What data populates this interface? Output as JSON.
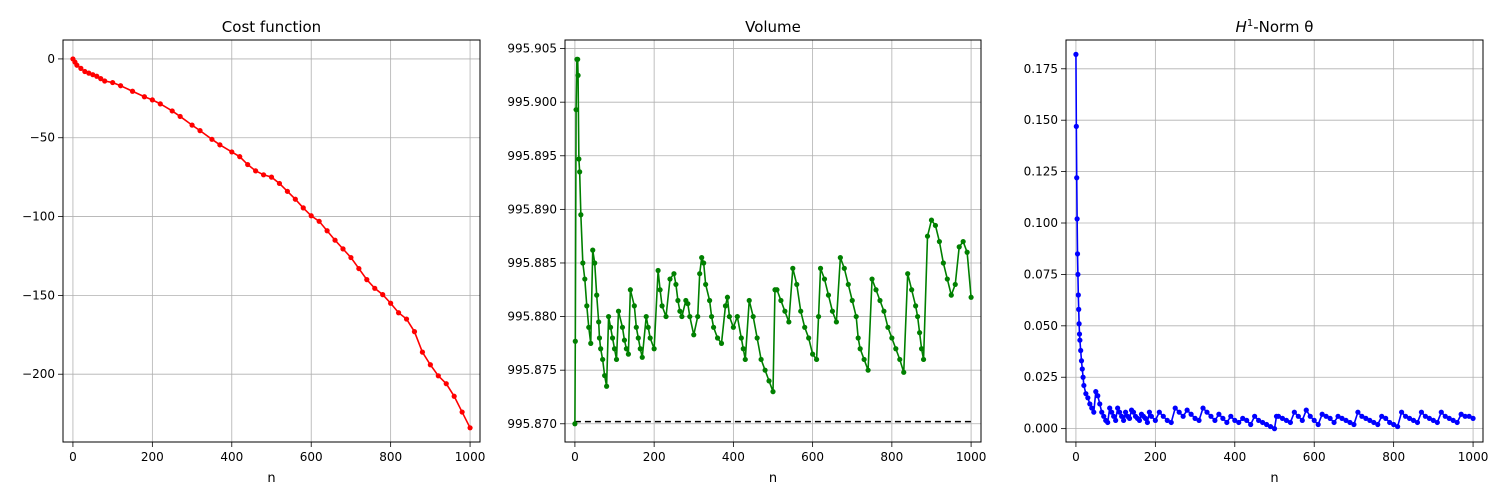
{
  "chart_data": [
    {
      "type": "line",
      "title": "Cost function",
      "xlabel": "n",
      "ylabel": "",
      "xlim": [
        -25,
        1025
      ],
      "ylim": [
        -243,
        12
      ],
      "xticks": [
        0,
        200,
        400,
        600,
        800,
        1000
      ],
      "xtick_labels": [
        "0",
        "200",
        "400",
        "600",
        "800",
        "1000"
      ],
      "yticks": [
        0,
        -50,
        -100,
        -150,
        -200
      ],
      "ytick_labels": [
        "0",
        "−50",
        "−100",
        "−150",
        "−200"
      ],
      "grid": true,
      "series": [
        {
          "color": "#ff0000",
          "marker": "dot",
          "x": [
            0,
            5,
            10,
            20,
            30,
            40,
            50,
            60,
            70,
            80,
            100,
            120,
            150,
            180,
            200,
            220,
            250,
            270,
            300,
            320,
            350,
            370,
            400,
            420,
            440,
            460,
            480,
            500,
            520,
            540,
            560,
            580,
            600,
            620,
            640,
            660,
            680,
            700,
            720,
            740,
            760,
            780,
            800,
            820,
            840,
            860,
            880,
            900,
            920,
            940,
            960,
            980,
            1000
          ],
          "y": [
            0,
            -2,
            -4,
            -6,
            -8,
            -9,
            -10,
            -11,
            -12.5,
            -14,
            -15,
            -17,
            -20.5,
            -24,
            -26,
            -28.5,
            -33,
            -36.5,
            -42,
            -45.5,
            -51,
            -54.5,
            -59,
            -62,
            -67,
            -71,
            -73.5,
            -75,
            -79,
            -84,
            -89,
            -94.5,
            -99.5,
            -103,
            -109,
            -115,
            -120.5,
            -126,
            -133,
            -140,
            -145.5,
            -149.5,
            -155,
            -161,
            -165,
            -173,
            -186,
            -194,
            -201,
            -206,
            -214,
            -224,
            -234
          ]
        }
      ]
    },
    {
      "type": "line",
      "title": "Volume",
      "xlabel": "n",
      "ylabel": "",
      "xlim": [
        -25,
        1025
      ],
      "ylim": [
        995.8683,
        995.9058
      ],
      "xticks": [
        0,
        200,
        400,
        600,
        800,
        1000
      ],
      "xtick_labels": [
        "0",
        "200",
        "400",
        "600",
        "800",
        "1000"
      ],
      "yticks": [
        995.87,
        995.875,
        995.88,
        995.885,
        995.89,
        995.895,
        995.9,
        995.905
      ],
      "ytick_labels": [
        "995.870",
        "995.875",
        "995.880",
        "995.885",
        "995.890",
        "995.895",
        "995.900",
        "995.905"
      ],
      "grid": true,
      "reference_line": {
        "y": 995.8702,
        "x": [
          0,
          1000
        ],
        "color": "#000000",
        "style": "dashed"
      },
      "series": [
        {
          "color": "#008000",
          "marker": "dot",
          "x": [
            0,
            1,
            3,
            5,
            7,
            8,
            10,
            12,
            15,
            20,
            25,
            30,
            35,
            40,
            45,
            50,
            55,
            60,
            62,
            65,
            70,
            75,
            80,
            85,
            90,
            95,
            100,
            105,
            110,
            120,
            125,
            130,
            135,
            140,
            150,
            155,
            160,
            165,
            170,
            180,
            185,
            190,
            200,
            210,
            215,
            220,
            230,
            240,
            250,
            255,
            260,
            265,
            270,
            280,
            285,
            290,
            300,
            310,
            315,
            320,
            325,
            330,
            340,
            345,
            350,
            360,
            370,
            380,
            385,
            390,
            400,
            410,
            420,
            425,
            430,
            440,
            450,
            460,
            470,
            480,
            490,
            500,
            505,
            510,
            520,
            530,
            540,
            550,
            560,
            570,
            580,
            590,
            600,
            610,
            615,
            620,
            630,
            640,
            650,
            660,
            670,
            680,
            690,
            700,
            710,
            715,
            720,
            730,
            740,
            750,
            760,
            770,
            780,
            790,
            800,
            810,
            820,
            830,
            840,
            850,
            860,
            865,
            870,
            875,
            880,
            890,
            900,
            910,
            920,
            930,
            940,
            950,
            960,
            970,
            980,
            990,
            1000
          ],
          "y": [
            995.87,
            995.8777,
            995.8993,
            995.904,
            995.904,
            995.9025,
            995.8947,
            995.8935,
            995.8895,
            995.885,
            995.8835,
            995.881,
            995.879,
            995.8775,
            995.8862,
            995.885,
            995.882,
            995.8795,
            995.878,
            995.877,
            995.876,
            995.8745,
            995.8735,
            995.88,
            995.879,
            995.878,
            995.877,
            995.876,
            995.8805,
            995.879,
            995.8778,
            995.877,
            995.8765,
            995.8825,
            995.881,
            995.879,
            995.878,
            995.877,
            995.8762,
            995.88,
            995.879,
            995.878,
            995.877,
            995.8843,
            995.8825,
            995.881,
            995.88,
            995.8835,
            995.884,
            995.883,
            995.8815,
            995.8805,
            995.88,
            995.8815,
            995.8812,
            995.88,
            995.8783,
            995.88,
            995.884,
            995.8855,
            995.885,
            995.883,
            995.8815,
            995.88,
            995.879,
            995.878,
            995.8775,
            995.881,
            995.8818,
            995.88,
            995.879,
            995.88,
            995.878,
            995.877,
            995.876,
            995.8815,
            995.88,
            995.878,
            995.876,
            995.875,
            995.874,
            995.873,
            995.8825,
            995.8825,
            995.8815,
            995.8805,
            995.8795,
            995.8845,
            995.883,
            995.8805,
            995.879,
            995.878,
            995.8765,
            995.876,
            995.88,
            995.8845,
            995.8835,
            995.882,
            995.8805,
            995.8795,
            995.8855,
            995.8845,
            995.883,
            995.8815,
            995.88,
            995.878,
            995.877,
            995.876,
            995.875,
            995.8835,
            995.8825,
            995.8815,
            995.8805,
            995.879,
            995.878,
            995.877,
            995.876,
            995.8748,
            995.884,
            995.8825,
            995.881,
            995.88,
            995.8785,
            995.877,
            995.876,
            995.8875,
            995.889,
            995.8885,
            995.887,
            995.885,
            995.8835,
            995.882,
            995.883,
            995.8865,
            995.887,
            995.886,
            995.8818
          ]
        }
      ]
    },
    {
      "type": "line",
      "title": "H1-Norm θ",
      "title_main": "H",
      "title_sup": "1",
      "title_rest": "-Norm θ",
      "xlabel": "n",
      "ylabel": "",
      "xlim": [
        -25,
        1025
      ],
      "ylim": [
        -0.0065,
        0.189
      ],
      "xticks": [
        0,
        200,
        400,
        600,
        800,
        1000
      ],
      "xtick_labels": [
        "0",
        "200",
        "400",
        "600",
        "800",
        "1000"
      ],
      "yticks": [
        0.0,
        0.025,
        0.05,
        0.075,
        0.1,
        0.125,
        0.15,
        0.175
      ],
      "ytick_labels": [
        "0.000",
        "0.025",
        "0.050",
        "0.075",
        "0.100",
        "0.125",
        "0.150",
        "0.175"
      ],
      "grid": true,
      "series": [
        {
          "color": "#0000ff",
          "marker": "dot",
          "x": [
            0,
            1,
            2,
            3,
            4,
            5,
            6,
            7,
            8,
            9,
            10,
            12,
            14,
            16,
            18,
            20,
            25,
            30,
            35,
            40,
            45,
            50,
            55,
            60,
            65,
            70,
            75,
            80,
            85,
            90,
            95,
            100,
            105,
            110,
            115,
            120,
            125,
            130,
            135,
            140,
            145,
            150,
            155,
            160,
            165,
            170,
            175,
            180,
            185,
            190,
            200,
            210,
            220,
            230,
            240,
            250,
            260,
            270,
            280,
            290,
            300,
            310,
            320,
            330,
            340,
            350,
            360,
            370,
            380,
            390,
            400,
            410,
            420,
            430,
            440,
            450,
            460,
            470,
            480,
            490,
            500,
            505,
            510,
            520,
            530,
            540,
            550,
            560,
            570,
            580,
            590,
            600,
            610,
            620,
            630,
            640,
            650,
            660,
            670,
            680,
            690,
            700,
            710,
            720,
            730,
            740,
            750,
            760,
            770,
            780,
            790,
            800,
            810,
            820,
            830,
            840,
            850,
            860,
            870,
            880,
            890,
            900,
            910,
            920,
            930,
            940,
            950,
            960,
            970,
            980,
            990,
            1000
          ],
          "y": [
            0.182,
            0.147,
            0.122,
            0.102,
            0.085,
            0.075,
            0.065,
            0.058,
            0.051,
            0.046,
            0.043,
            0.038,
            0.033,
            0.029,
            0.025,
            0.021,
            0.017,
            0.015,
            0.012,
            0.01,
            0.008,
            0.018,
            0.016,
            0.012,
            0.008,
            0.006,
            0.004,
            0.003,
            0.01,
            0.008,
            0.006,
            0.004,
            0.01,
            0.008,
            0.006,
            0.004,
            0.008,
            0.006,
            0.005,
            0.009,
            0.008,
            0.006,
            0.005,
            0.004,
            0.007,
            0.006,
            0.005,
            0.003,
            0.008,
            0.006,
            0.004,
            0.008,
            0.006,
            0.004,
            0.003,
            0.01,
            0.008,
            0.006,
            0.009,
            0.007,
            0.005,
            0.004,
            0.01,
            0.008,
            0.006,
            0.004,
            0.007,
            0.005,
            0.003,
            0.006,
            0.004,
            0.003,
            0.005,
            0.004,
            0.002,
            0.006,
            0.004,
            0.003,
            0.002,
            0.001,
            0.0,
            0.006,
            0.006,
            0.005,
            0.004,
            0.003,
            0.008,
            0.006,
            0.004,
            0.009,
            0.006,
            0.004,
            0.002,
            0.007,
            0.006,
            0.005,
            0.003,
            0.006,
            0.005,
            0.004,
            0.003,
            0.002,
            0.008,
            0.006,
            0.005,
            0.004,
            0.003,
            0.002,
            0.006,
            0.005,
            0.003,
            0.002,
            0.001,
            0.008,
            0.006,
            0.005,
            0.004,
            0.003,
            0.008,
            0.006,
            0.005,
            0.004,
            0.003,
            0.008,
            0.006,
            0.005,
            0.004,
            0.003,
            0.007,
            0.006,
            0.006,
            0.005
          ]
        }
      ]
    }
  ]
}
